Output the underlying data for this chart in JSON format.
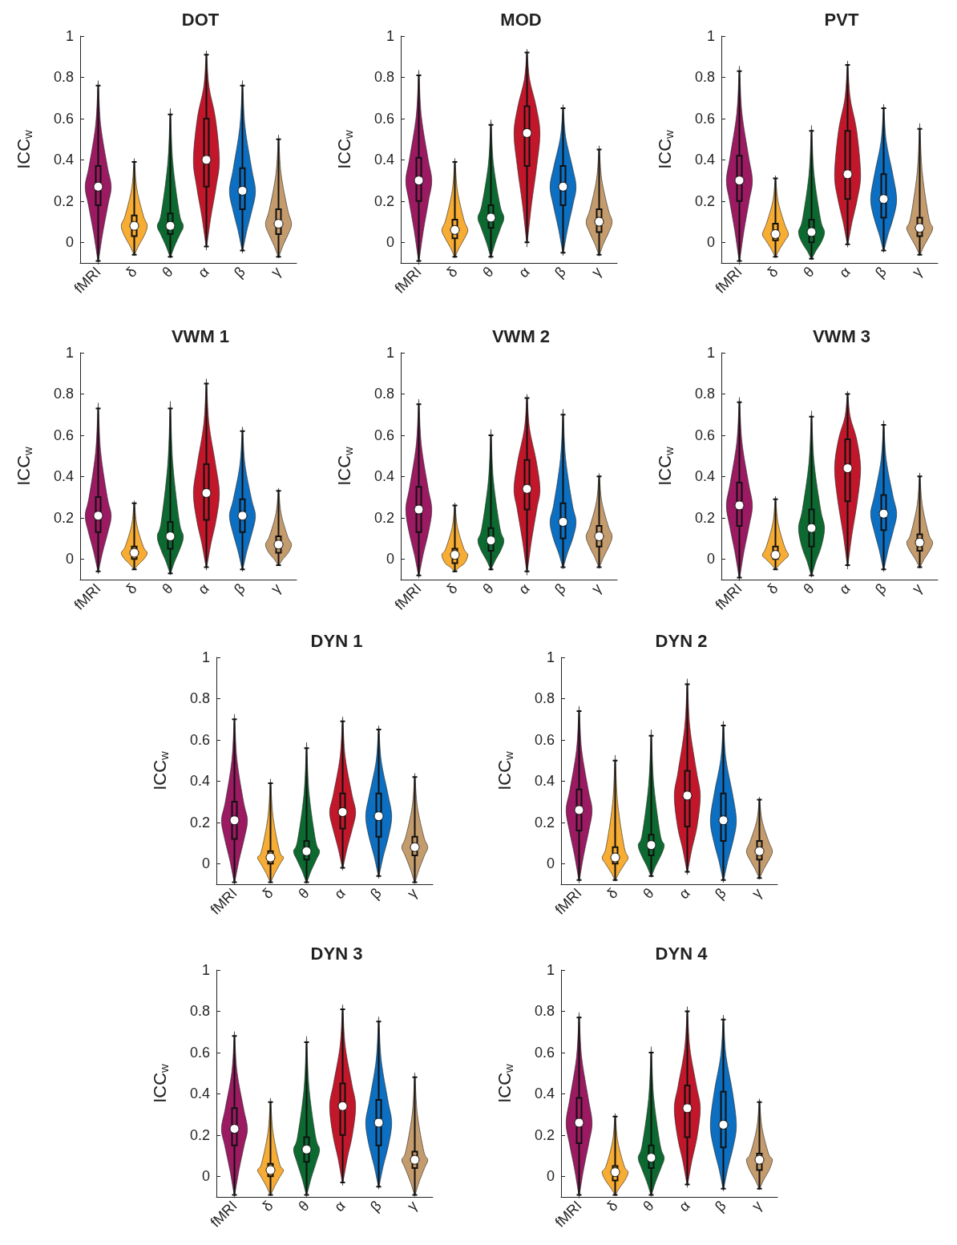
{
  "chart_data": [
    {
      "type": "box",
      "title": "DOT",
      "ylabel": "ICC$_{w}$",
      "categories": [
        "fMRI",
        "δ",
        "θ",
        "α",
        "β",
        "γ"
      ],
      "colors": [
        "#9b1a62",
        "#f7ac33",
        "#0c6a30",
        "#c2172a",
        "#0c6fc1",
        "#c49b6c"
      ],
      "ylim": [
        -0.1,
        1
      ],
      "yticks": [
        0,
        0.2,
        0.4,
        0.6,
        0.8,
        1
      ],
      "boxes": [
        {
          "low": -0.09,
          "q1": 0.18,
          "median": 0.27,
          "q3": 0.37,
          "high": 0.76
        },
        {
          "low": -0.06,
          "q1": 0.03,
          "median": 0.08,
          "q3": 0.13,
          "high": 0.39
        },
        {
          "low": -0.07,
          "q1": 0.04,
          "median": 0.08,
          "q3": 0.14,
          "high": 0.62
        },
        {
          "low": -0.02,
          "q1": 0.27,
          "median": 0.4,
          "q3": 0.6,
          "high": 0.91
        },
        {
          "low": -0.04,
          "q1": 0.16,
          "median": 0.25,
          "q3": 0.36,
          "high": 0.76
        },
        {
          "low": -0.07,
          "q1": 0.04,
          "median": 0.09,
          "q3": 0.16,
          "high": 0.5
        }
      ],
      "series": [
        {
          "type": "scatter",
          "marker": "circle",
          "color": "#ffffff",
          "x": [
            "fMRI",
            "δ",
            "θ",
            "α",
            "β",
            "γ"
          ],
          "values": [
            0.27,
            0.08,
            0.08,
            0.4,
            0.25,
            0.09
          ]
        }
      ]
    },
    {
      "type": "box",
      "title": "MOD",
      "ylabel": "ICC$_{w}$",
      "categories": [
        "fMRI",
        "δ",
        "θ",
        "α",
        "β",
        "γ"
      ],
      "colors": [
        "#9b1a62",
        "#f7ac33",
        "#0c6a30",
        "#c2172a",
        "#0c6fc1",
        "#c49b6c"
      ],
      "ylim": [
        -0.1,
        1
      ],
      "yticks": [
        0,
        0.2,
        0.4,
        0.6,
        0.8,
        1
      ],
      "boxes": [
        {
          "low": -0.09,
          "q1": 0.2,
          "median": 0.3,
          "q3": 0.41,
          "high": 0.81
        },
        {
          "low": -0.07,
          "q1": 0.02,
          "median": 0.06,
          "q3": 0.11,
          "high": 0.39
        },
        {
          "low": -0.07,
          "q1": 0.07,
          "median": 0.12,
          "q3": 0.18,
          "high": 0.57
        },
        {
          "low": 0,
          "q1": 0.37,
          "median": 0.53,
          "q3": 0.66,
          "high": 0.92
        },
        {
          "low": -0.05,
          "q1": 0.18,
          "median": 0.27,
          "q3": 0.37,
          "high": 0.65
        },
        {
          "low": -0.06,
          "q1": 0.05,
          "median": 0.1,
          "q3": 0.16,
          "high": 0.45
        }
      ],
      "series": [
        {
          "type": "scatter",
          "marker": "circle",
          "color": "#ffffff",
          "x": [
            "fMRI",
            "δ",
            "θ",
            "α",
            "β",
            "γ"
          ],
          "values": [
            0.3,
            0.06,
            0.12,
            0.53,
            0.27,
            0.1
          ]
        }
      ]
    },
    {
      "type": "box",
      "title": "PVT",
      "ylabel": "ICC$_{w}$",
      "categories": [
        "fMRI",
        "δ",
        "θ",
        "α",
        "β",
        "γ"
      ],
      "colors": [
        "#9b1a62",
        "#f7ac33",
        "#0c6a30",
        "#c2172a",
        "#0c6fc1",
        "#c49b6c"
      ],
      "ylim": [
        -0.1,
        1
      ],
      "yticks": [
        0,
        0.2,
        0.4,
        0.6,
        0.8,
        1
      ],
      "boxes": [
        {
          "low": -0.09,
          "q1": 0.2,
          "median": 0.3,
          "q3": 0.42,
          "high": 0.83
        },
        {
          "low": -0.07,
          "q1": 0.01,
          "median": 0.04,
          "q3": 0.09,
          "high": 0.31
        },
        {
          "low": -0.08,
          "q1": 0,
          "median": 0.05,
          "q3": 0.11,
          "high": 0.54
        },
        {
          "low": -0.01,
          "q1": 0.21,
          "median": 0.33,
          "q3": 0.54,
          "high": 0.86
        },
        {
          "low": -0.04,
          "q1": 0.12,
          "median": 0.21,
          "q3": 0.33,
          "high": 0.65
        },
        {
          "low": -0.06,
          "q1": 0.03,
          "median": 0.07,
          "q3": 0.12,
          "high": 0.55
        }
      ],
      "series": [
        {
          "type": "scatter",
          "marker": "circle",
          "color": "#ffffff",
          "x": [
            "fMRI",
            "δ",
            "θ",
            "α",
            "β",
            "γ"
          ],
          "values": [
            0.3,
            0.04,
            0.05,
            0.33,
            0.21,
            0.07
          ]
        }
      ]
    },
    {
      "type": "box",
      "title": "VWM 1",
      "ylabel": "ICC$_{w}$",
      "categories": [
        "fMRI",
        "δ",
        "θ",
        "α",
        "β",
        "γ"
      ],
      "colors": [
        "#9b1a62",
        "#f7ac33",
        "#0c6a30",
        "#c2172a",
        "#0c6fc1",
        "#c49b6c"
      ],
      "ylim": [
        -0.1,
        1
      ],
      "yticks": [
        0,
        0.2,
        0.4,
        0.6,
        0.8,
        1
      ],
      "boxes": [
        {
          "low": -0.06,
          "q1": 0.13,
          "median": 0.21,
          "q3": 0.3,
          "high": 0.73
        },
        {
          "low": -0.05,
          "q1": 0,
          "median": 0.03,
          "q3": 0.06,
          "high": 0.27
        },
        {
          "low": -0.07,
          "q1": 0.05,
          "median": 0.11,
          "q3": 0.18,
          "high": 0.73
        },
        {
          "low": -0.04,
          "q1": 0.19,
          "median": 0.32,
          "q3": 0.46,
          "high": 0.85
        },
        {
          "low": -0.05,
          "q1": 0.13,
          "median": 0.21,
          "q3": 0.29,
          "high": 0.62
        },
        {
          "low": -0.03,
          "q1": 0.03,
          "median": 0.07,
          "q3": 0.11,
          "high": 0.33
        }
      ],
      "series": [
        {
          "type": "scatter",
          "marker": "circle",
          "color": "#ffffff",
          "x": [
            "fMRI",
            "δ",
            "θ",
            "α",
            "β",
            "γ"
          ],
          "values": [
            0.21,
            0.03,
            0.11,
            0.32,
            0.21,
            0.07
          ]
        }
      ]
    },
    {
      "type": "box",
      "title": "VWM 2",
      "ylabel": "ICC$_{w}$",
      "categories": [
        "fMRI",
        "δ",
        "θ",
        "α",
        "β",
        "γ"
      ],
      "colors": [
        "#9b1a62",
        "#f7ac33",
        "#0c6a30",
        "#c2172a",
        "#0c6fc1",
        "#c49b6c"
      ],
      "ylim": [
        -0.1,
        1
      ],
      "yticks": [
        0,
        0.2,
        0.4,
        0.6,
        0.8,
        1
      ],
      "boxes": [
        {
          "low": -0.08,
          "q1": 0.13,
          "median": 0.24,
          "q3": 0.35,
          "high": 0.75
        },
        {
          "low": -0.06,
          "q1": -0.02,
          "median": 0.02,
          "q3": 0.05,
          "high": 0.26
        },
        {
          "low": -0.05,
          "q1": 0.04,
          "median": 0.09,
          "q3": 0.15,
          "high": 0.6
        },
        {
          "low": -0.06,
          "q1": 0.24,
          "median": 0.34,
          "q3": 0.48,
          "high": 0.78
        },
        {
          "low": -0.04,
          "q1": 0.1,
          "median": 0.18,
          "q3": 0.27,
          "high": 0.7
        },
        {
          "low": -0.04,
          "q1": 0.06,
          "median": 0.11,
          "q3": 0.16,
          "high": 0.4
        }
      ],
      "series": [
        {
          "type": "scatter",
          "marker": "circle",
          "color": "#ffffff",
          "x": [
            "fMRI",
            "δ",
            "θ",
            "α",
            "β",
            "γ"
          ],
          "values": [
            0.24,
            0.02,
            0.09,
            0.34,
            0.18,
            0.11
          ]
        }
      ]
    },
    {
      "type": "box",
      "title": "VWM 3",
      "ylabel": "ICC$_{w}$",
      "categories": [
        "fMRI",
        "δ",
        "θ",
        "α",
        "β",
        "γ"
      ],
      "colors": [
        "#9b1a62",
        "#f7ac33",
        "#0c6a30",
        "#c2172a",
        "#0c6fc1",
        "#c49b6c"
      ],
      "ylim": [
        -0.1,
        1
      ],
      "yticks": [
        0,
        0.2,
        0.4,
        0.6,
        0.8,
        1
      ],
      "boxes": [
        {
          "low": -0.09,
          "q1": 0.16,
          "median": 0.26,
          "q3": 0.37,
          "high": 0.76
        },
        {
          "low": -0.05,
          "q1": 0,
          "median": 0.02,
          "q3": 0.06,
          "high": 0.29
        },
        {
          "low": -0.08,
          "q1": 0.06,
          "median": 0.15,
          "q3": 0.24,
          "high": 0.69
        },
        {
          "low": -0.03,
          "q1": 0.28,
          "median": 0.44,
          "q3": 0.58,
          "high": 0.8
        },
        {
          "low": -0.05,
          "q1": 0.14,
          "median": 0.22,
          "q3": 0.31,
          "high": 0.65
        },
        {
          "low": -0.04,
          "q1": 0.04,
          "median": 0.08,
          "q3": 0.12,
          "high": 0.4
        }
      ],
      "series": [
        {
          "type": "scatter",
          "marker": "circle",
          "color": "#ffffff",
          "x": [
            "fMRI",
            "δ",
            "θ",
            "α",
            "β",
            "γ"
          ],
          "values": [
            0.26,
            0.02,
            0.15,
            0.44,
            0.22,
            0.08
          ]
        }
      ]
    },
    {
      "type": "box",
      "title": "DYN 1",
      "ylabel": "ICC$_{w}$",
      "categories": [
        "fMRI",
        "δ",
        "θ",
        "α",
        "β",
        "γ"
      ],
      "colors": [
        "#9b1a62",
        "#f7ac33",
        "#0c6a30",
        "#c2172a",
        "#0c6fc1",
        "#c49b6c"
      ],
      "ylim": [
        -0.1,
        1
      ],
      "yticks": [
        0,
        0.2,
        0.4,
        0.6,
        0.8,
        1
      ],
      "boxes": [
        {
          "low": -0.09,
          "q1": 0.12,
          "median": 0.21,
          "q3": 0.3,
          "high": 0.7
        },
        {
          "low": -0.09,
          "q1": 0,
          "median": 0.03,
          "q3": 0.06,
          "high": 0.39
        },
        {
          "low": -0.09,
          "q1": 0.02,
          "median": 0.06,
          "q3": 0.11,
          "high": 0.56
        },
        {
          "low": -0.02,
          "q1": 0.17,
          "median": 0.25,
          "q3": 0.34,
          "high": 0.69
        },
        {
          "low": -0.06,
          "q1": 0.13,
          "median": 0.23,
          "q3": 0.34,
          "high": 0.65
        },
        {
          "low": -0.09,
          "q1": 0.04,
          "median": 0.08,
          "q3": 0.13,
          "high": 0.42
        }
      ],
      "series": [
        {
          "type": "scatter",
          "marker": "circle",
          "color": "#ffffff",
          "x": [
            "fMRI",
            "δ",
            "θ",
            "α",
            "β",
            "γ"
          ],
          "values": [
            0.21,
            0.03,
            0.06,
            0.25,
            0.23,
            0.08
          ]
        }
      ]
    },
    {
      "type": "box",
      "title": "DYN 2",
      "ylabel": "ICC$_{w}$",
      "categories": [
        "fMRI",
        "δ",
        "θ",
        "α",
        "β",
        "γ"
      ],
      "colors": [
        "#9b1a62",
        "#f7ac33",
        "#0c6a30",
        "#c2172a",
        "#0c6fc1",
        "#c49b6c"
      ],
      "ylim": [
        -0.1,
        1
      ],
      "yticks": [
        0,
        0.2,
        0.4,
        0.6,
        0.8,
        1
      ],
      "boxes": [
        {
          "low": -0.08,
          "q1": 0.16,
          "median": 0.26,
          "q3": 0.36,
          "high": 0.74
        },
        {
          "low": -0.08,
          "q1": 0,
          "median": 0.03,
          "q3": 0.08,
          "high": 0.5
        },
        {
          "low": -0.06,
          "q1": 0.04,
          "median": 0.09,
          "q3": 0.14,
          "high": 0.62
        },
        {
          "low": -0.04,
          "q1": 0.18,
          "median": 0.33,
          "q3": 0.45,
          "high": 0.87
        },
        {
          "low": -0.08,
          "q1": 0.11,
          "median": 0.21,
          "q3": 0.34,
          "high": 0.67
        },
        {
          "low": -0.07,
          "q1": 0.02,
          "median": 0.06,
          "q3": 0.11,
          "high": 0.31
        }
      ],
      "series": [
        {
          "type": "scatter",
          "marker": "circle",
          "color": "#ffffff",
          "x": [
            "fMRI",
            "δ",
            "θ",
            "α",
            "β",
            "γ"
          ],
          "values": [
            0.26,
            0.03,
            0.09,
            0.33,
            0.21,
            0.06
          ]
        }
      ]
    },
    {
      "type": "box",
      "title": "DYN 3",
      "ylabel": "ICC$_{w}$",
      "categories": [
        "fMRI",
        "δ",
        "θ",
        "α",
        "β",
        "γ"
      ],
      "colors": [
        "#9b1a62",
        "#f7ac33",
        "#0c6a30",
        "#c2172a",
        "#0c6fc1",
        "#c49b6c"
      ],
      "ylim": [
        -0.1,
        1
      ],
      "yticks": [
        0,
        0.2,
        0.4,
        0.6,
        0.8,
        1
      ],
      "boxes": [
        {
          "low": -0.09,
          "q1": 0.15,
          "median": 0.23,
          "q3": 0.33,
          "high": 0.68
        },
        {
          "low": -0.09,
          "q1": 0,
          "median": 0.03,
          "q3": 0.06,
          "high": 0.36
        },
        {
          "low": -0.09,
          "q1": 0.07,
          "median": 0.13,
          "q3": 0.19,
          "high": 0.65
        },
        {
          "low": -0.03,
          "q1": 0.2,
          "median": 0.34,
          "q3": 0.45,
          "high": 0.81
        },
        {
          "low": -0.05,
          "q1": 0.15,
          "median": 0.26,
          "q3": 0.37,
          "high": 0.75
        },
        {
          "low": -0.09,
          "q1": 0.04,
          "median": 0.08,
          "q3": 0.12,
          "high": 0.48
        }
      ],
      "series": [
        {
          "type": "scatter",
          "marker": "circle",
          "color": "#ffffff",
          "x": [
            "fMRI",
            "δ",
            "θ",
            "α",
            "β",
            "γ"
          ],
          "values": [
            0.23,
            0.03,
            0.13,
            0.34,
            0.26,
            0.08
          ]
        }
      ]
    },
    {
      "type": "box",
      "title": "DYN 4",
      "ylabel": "ICC$_{w}$",
      "categories": [
        "fMRI",
        "δ",
        "θ",
        "α",
        "β",
        "γ"
      ],
      "colors": [
        "#9b1a62",
        "#f7ac33",
        "#0c6a30",
        "#c2172a",
        "#0c6fc1",
        "#c49b6c"
      ],
      "ylim": [
        -0.1,
        1
      ],
      "yticks": [
        0,
        0.2,
        0.4,
        0.6,
        0.8,
        1
      ],
      "boxes": [
        {
          "low": -0.09,
          "q1": 0.16,
          "median": 0.26,
          "q3": 0.38,
          "high": 0.77
        },
        {
          "low": -0.09,
          "q1": -0.02,
          "median": 0.02,
          "q3": 0.05,
          "high": 0.29
        },
        {
          "low": -0.09,
          "q1": 0.04,
          "median": 0.09,
          "q3": 0.15,
          "high": 0.6
        },
        {
          "low": -0.04,
          "q1": 0.19,
          "median": 0.33,
          "q3": 0.44,
          "high": 0.8
        },
        {
          "low": -0.06,
          "q1": 0.14,
          "median": 0.25,
          "q3": 0.41,
          "high": 0.76
        },
        {
          "low": -0.06,
          "q1": 0.03,
          "median": 0.08,
          "q3": 0.11,
          "high": 0.36
        }
      ],
      "series": [
        {
          "type": "scatter",
          "marker": "circle",
          "color": "#ffffff",
          "x": [
            "fMRI",
            "δ",
            "θ",
            "α",
            "β",
            "γ"
          ],
          "values": [
            0.26,
            0.02,
            0.09,
            0.33,
            0.25,
            0.08
          ]
        }
      ]
    }
  ]
}
